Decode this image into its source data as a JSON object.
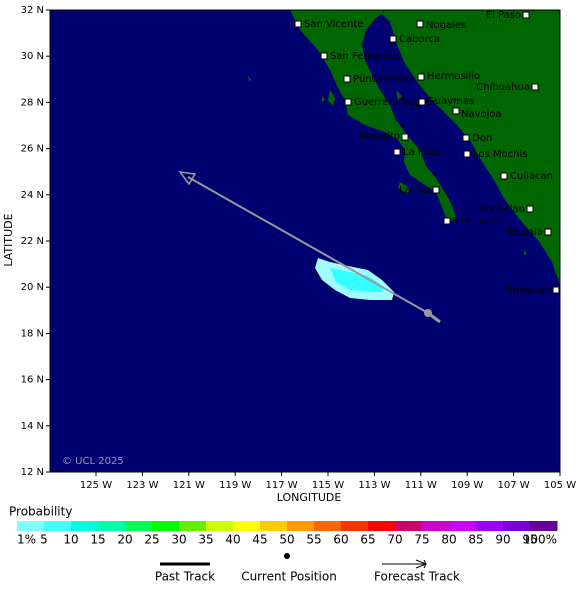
{
  "map": {
    "x_axis": {
      "title": "LONGITUDE",
      "ticks": [
        {
          "value": 125,
          "label": "125 W"
        },
        {
          "value": 123,
          "label": "123 W"
        },
        {
          "value": 121,
          "label": "121 W"
        },
        {
          "value": 119,
          "label": "119 W"
        },
        {
          "value": 117,
          "label": "117 W"
        },
        {
          "value": 115,
          "label": "115 W"
        },
        {
          "value": 113,
          "label": "113 W"
        },
        {
          "value": 111,
          "label": "111 W"
        },
        {
          "value": 109,
          "label": "109 W"
        },
        {
          "value": 107,
          "label": "107 W"
        },
        {
          "value": 105,
          "label": "105 W"
        }
      ]
    },
    "y_axis": {
      "title": "LATITUDE",
      "ticks": [
        {
          "value": 32,
          "label": "32 N"
        },
        {
          "value": 30,
          "label": "30 N"
        },
        {
          "value": 28,
          "label": "28 N"
        },
        {
          "value": 26,
          "label": "26 N"
        },
        {
          "value": 24,
          "label": "24 N"
        },
        {
          "value": 22,
          "label": "22 N"
        },
        {
          "value": 20,
          "label": "20 N"
        },
        {
          "value": 18,
          "label": "18 N"
        },
        {
          "value": 16,
          "label": "16 N"
        },
        {
          "value": 14,
          "label": "14 N"
        },
        {
          "value": 12,
          "label": "12 N"
        }
      ]
    },
    "cities": [
      "San Vicente",
      "Nogales",
      "El Paso",
      "Caborca",
      "San Fernando",
      "Punta Prieta",
      "Hermosillo",
      "Chihuahua",
      "Guerrero Negro",
      "Guaymas",
      "Navojoa",
      "Rosarito",
      "Don",
      "La Poza",
      "Los Mochis",
      "Culiacan",
      "La Paz",
      "San Lucas",
      "Mazatlan",
      "Tecuala",
      "Tomatlan"
    ],
    "copyright": "© UCL 2025"
  },
  "legend": {
    "title": "Probability",
    "labels": [
      "1%",
      "5",
      "10",
      "15",
      "20",
      "25",
      "30",
      "35",
      "40",
      "45",
      "50",
      "55",
      "60",
      "65",
      "70",
      "75",
      "80",
      "85",
      "90",
      "95",
      "100%"
    ],
    "colors": [
      "#80ffff",
      "#40ffff",
      "#00ffe0",
      "#00ffaa",
      "#00ff55",
      "#00ff00",
      "#66ee00",
      "#ccff00",
      "#ffff00",
      "#ffcc00",
      "#ff9900",
      "#ff6600",
      "#ff3300",
      "#ff0000",
      "#cc0066",
      "#cc00cc",
      "#cc00ff",
      "#9900ff",
      "#7700dd",
      "#660099"
    ],
    "items": [
      "Past Track",
      "Current Position",
      "Forecast Track"
    ]
  }
}
